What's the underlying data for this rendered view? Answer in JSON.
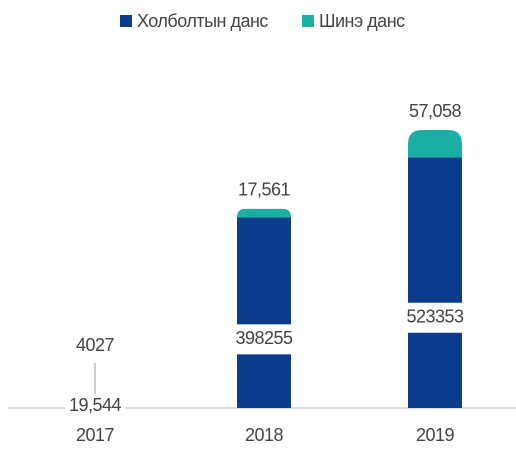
{
  "chart_data": {
    "type": "bar",
    "stacked": true,
    "categories": [
      "2017",
      "2018",
      "2019"
    ],
    "series": [
      {
        "name": "Холболтын данс",
        "color": "#0b3d8c",
        "values": [
          19544,
          398255,
          523353
        ],
        "value_labels": [
          "19,544",
          "398255",
          "523353"
        ]
      },
      {
        "name": "Шинэ данс",
        "color": "#1aafa5",
        "values": [
          4027,
          17561,
          57058
        ],
        "value_labels": [
          "4027",
          "17,561",
          "57,058"
        ]
      }
    ],
    "legend": "top"
  }
}
